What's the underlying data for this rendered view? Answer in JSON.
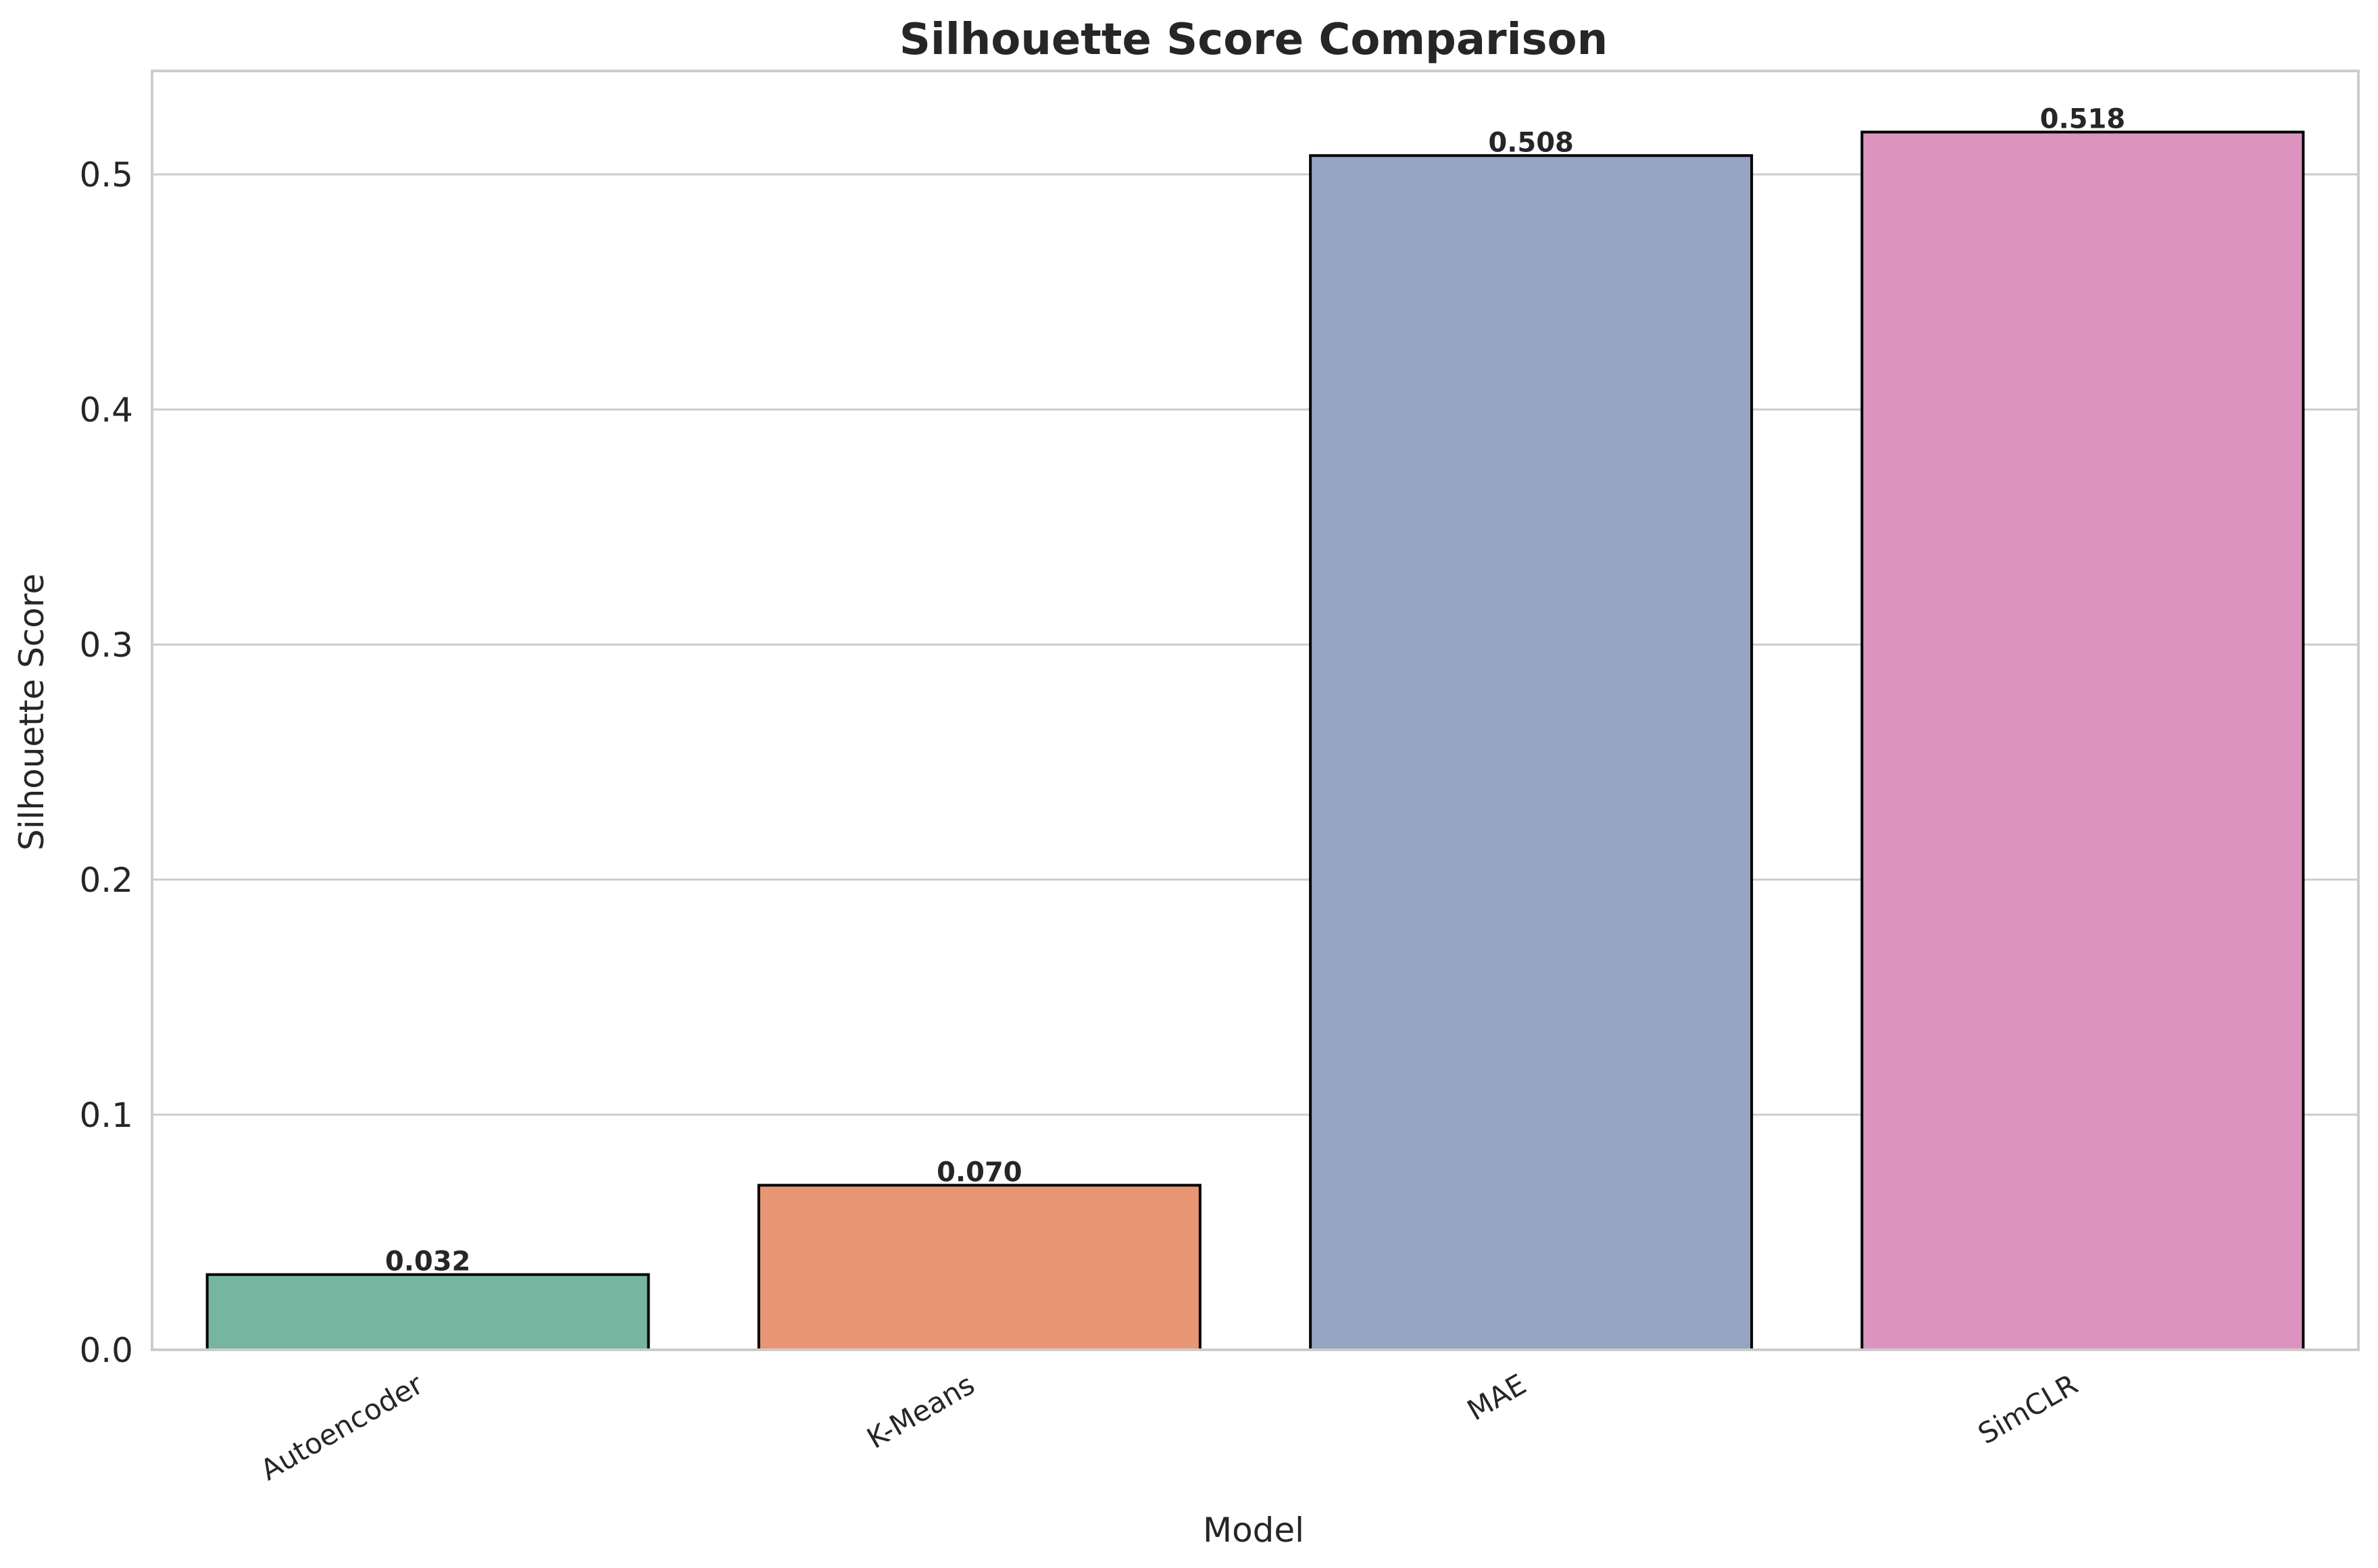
{
  "chart_data": {
    "type": "bar",
    "title": "Silhouette Score Comparison",
    "xlabel": "Model",
    "ylabel": "Silhouette Score",
    "categories": [
      "Autoencoder",
      "K-Means",
      "MAE",
      "SimCLR"
    ],
    "values": [
      0.032,
      0.07,
      0.508,
      0.518
    ],
    "value_labels": [
      "0.032",
      "0.070",
      "0.508",
      "0.518"
    ],
    "ylim": [
      0,
      0.544
    ],
    "yticks": [
      0.0,
      0.1,
      0.2,
      0.3,
      0.4,
      0.5
    ],
    "ytick_labels": [
      "0.0",
      "0.1",
      "0.2",
      "0.3",
      "0.4",
      "0.5"
    ],
    "grid": "horizontal",
    "legend": "none",
    "colors": {
      "bars": [
        "#76b6a0",
        "#e99674",
        "#95a4c3",
        "#dc94bf"
      ],
      "bar_edge": "#000000",
      "grid": "#cccccc",
      "spine": "#cccccc",
      "text": "#262626"
    }
  }
}
